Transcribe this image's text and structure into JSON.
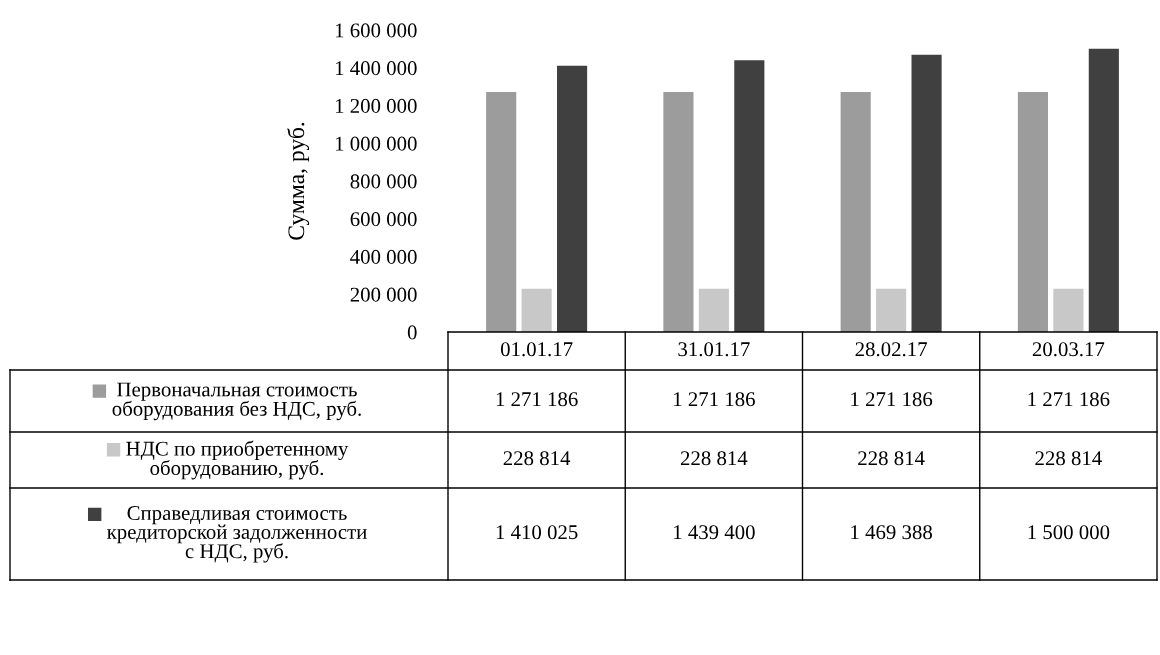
{
  "chart_data": {
    "type": "bar",
    "ylabel": "Сумма, руб.",
    "categories": [
      "01.01.17",
      "31.01.17",
      "28.02.17",
      "20.03.17"
    ],
    "series": [
      {
        "name": "Первоначальная стоимость\nоборудования без НДС, руб.",
        "color": "#9c9c9c",
        "values": [
          1271186,
          1271186,
          1271186,
          1271186
        ],
        "value_labels": [
          "1 271 186",
          "1 271 186",
          "1 271 186",
          "1 271 186"
        ]
      },
      {
        "name": "НДС по приобретенному\nоборудованию, руб.",
        "color": "#c8c8c8",
        "values": [
          228814,
          228814,
          228814,
          228814
        ],
        "value_labels": [
          "228 814",
          "228 814",
          "228 814",
          "228 814"
        ]
      },
      {
        "name": "Справедливая стоимость\nкредиторской задолженности\nс НДС, руб.",
        "color": "#404040",
        "values": [
          1410025,
          1439400,
          1469388,
          1500000
        ],
        "value_labels": [
          "1 410 025",
          "1 439 400",
          "1 469 388",
          "1 500 000"
        ]
      }
    ],
    "ylim": [
      0,
      1600000
    ],
    "yticks": [
      0,
      {
        "value": 200000,
        "label": "200 000"
      },
      {
        "value": 400000,
        "label": "400 000"
      },
      {
        "value": 600000,
        "label": "600 000"
      },
      {
        "value": 800000,
        "label": "800 000"
      },
      {
        "value": 1000000,
        "label": "1 000 000"
      },
      {
        "value": 1200000,
        "label": "1 200 000"
      },
      {
        "value": 1400000,
        "label": "1 400 000"
      },
      {
        "value": 1600000,
        "label": "1 600 000"
      }
    ],
    "grid": false,
    "legend": "bottom"
  }
}
